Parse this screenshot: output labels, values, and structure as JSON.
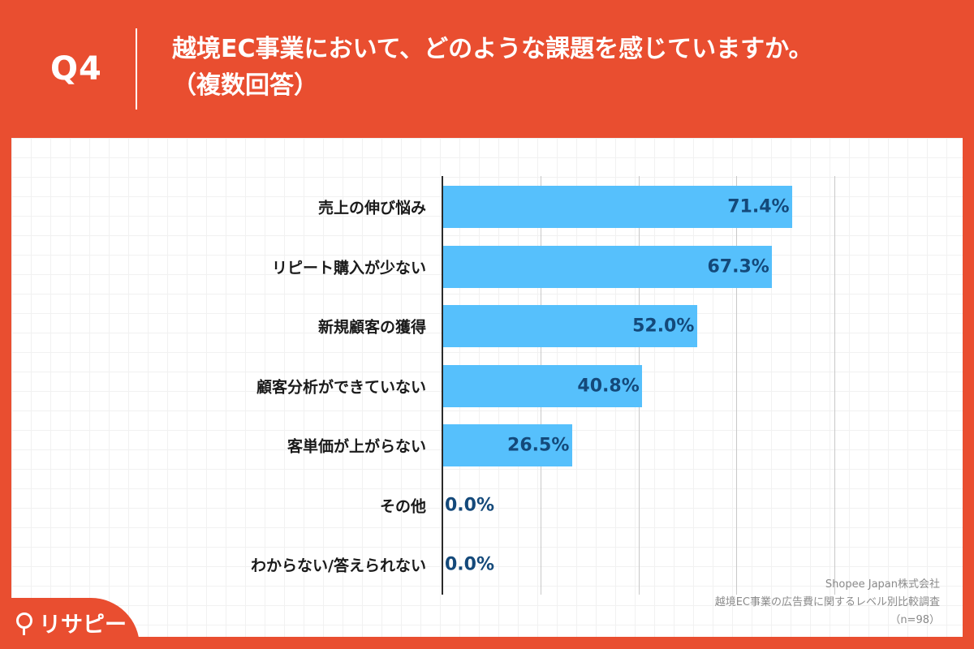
{
  "header": {
    "question_number": "Q4",
    "title": "越境EC事業において、どのような課題を感じていますか。",
    "subtitle": "（複数回答）"
  },
  "chart_data": {
    "type": "bar",
    "orientation": "horizontal",
    "title": "越境EC事業において、どのような課題を感じていますか。（複数回答）",
    "categories": [
      "売上の伸び悩み",
      "リピート購入が少ない",
      "新規顧客の獲得",
      "顧客分析ができていない",
      "客単価が上がらない",
      "その他",
      "わからない/答えられない"
    ],
    "values": [
      71.4,
      67.3,
      52.0,
      40.8,
      26.5,
      0.0,
      0.0
    ],
    "value_labels": [
      "71.4%",
      "67.3%",
      "52.0%",
      "40.8%",
      "26.5%",
      "0.0%",
      "0.0%"
    ],
    "unit": "%",
    "xlim": [
      0,
      80
    ],
    "grid": true,
    "bar_color": "#56c0fc",
    "value_label_color": "#14497a"
  },
  "footer": {
    "company": "Shopee Japan株式会社",
    "survey": "越境EC事業の広告費に関するレベル別比較調査",
    "sample": "（n=98）"
  },
  "logo": {
    "text": "リサピー"
  },
  "colors": {
    "background": "#e94e30",
    "panel": "#ffffff"
  }
}
